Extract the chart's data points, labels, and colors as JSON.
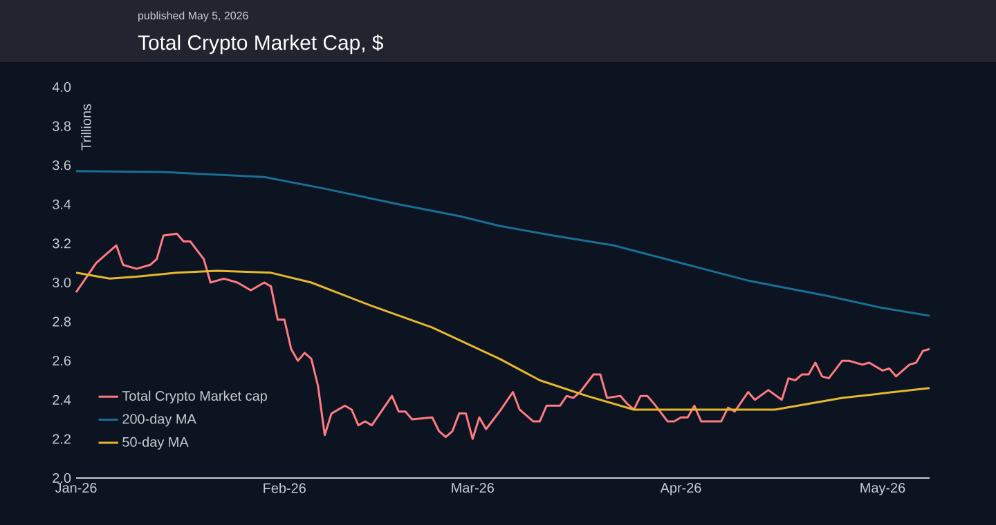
{
  "chart_data": {
    "type": "line",
    "title": "Total Crypto Market Cap, $",
    "subtitle": "published May 5, 2026",
    "ylabel": "Trillions",
    "xlim": [
      "2026-01-01",
      "2026-05-08"
    ],
    "xticks": [
      {
        "value": "2026-01-01",
        "label": "Jan-26"
      },
      {
        "value": "2026-02-01",
        "label": "Feb-26"
      },
      {
        "value": "2026-03-01",
        "label": "Mar-26"
      },
      {
        "value": "2026-04-01",
        "label": "Apr-26"
      },
      {
        "value": "2026-05-01",
        "label": "May-26"
      }
    ],
    "ylim": [
      2.0,
      4.0
    ],
    "yticks": [
      {
        "value": 2,
        "label": "2.0"
      },
      2.2,
      2.4,
      2.6,
      2.8,
      {
        "value": 3,
        "label": "3.0"
      },
      3.2,
      3.4,
      3.6,
      3.8,
      {
        "value": 4,
        "label": "4.0"
      }
    ],
    "legend": "bottom left",
    "series": [
      {
        "name": "Total Crypto Market cap",
        "color": "#ff7b82",
        "x": [
          "2026-01-01",
          "2026-01-04",
          "2026-01-07",
          "2026-01-08",
          "2026-01-10",
          "2026-01-12",
          "2026-01-13",
          "2026-01-14",
          "2026-01-16",
          "2026-01-17",
          "2026-01-18",
          "2026-01-20",
          "2026-01-21",
          "2026-01-23",
          "2026-01-25",
          "2026-01-27",
          "2026-01-29",
          "2026-01-30",
          "2026-01-31",
          "2026-02-01",
          "2026-02-02",
          "2026-02-03",
          "2026-02-04",
          "2026-02-05",
          "2026-02-06",
          "2026-02-07",
          "2026-02-08",
          "2026-02-10",
          "2026-02-11",
          "2026-02-12",
          "2026-02-13",
          "2026-02-14",
          "2026-02-16",
          "2026-02-17",
          "2026-02-18",
          "2026-02-19",
          "2026-02-20",
          "2026-02-23",
          "2026-02-24",
          "2026-02-25",
          "2026-02-26",
          "2026-02-27",
          "2026-02-28",
          "2026-03-01",
          "2026-03-02",
          "2026-03-03",
          "2026-03-05",
          "2026-03-07",
          "2026-03-08",
          "2026-03-10",
          "2026-03-11",
          "2026-03-12",
          "2026-03-14",
          "2026-03-15",
          "2026-03-16",
          "2026-03-17",
          "2026-03-19",
          "2026-03-20",
          "2026-03-21",
          "2026-03-23",
          "2026-03-24",
          "2026-03-25",
          "2026-03-26",
          "2026-03-27",
          "2026-03-28",
          "2026-03-30",
          "2026-03-31",
          "2026-04-01",
          "2026-04-02",
          "2026-04-03",
          "2026-04-04",
          "2026-04-07",
          "2026-04-08",
          "2026-04-09",
          "2026-04-11",
          "2026-04-12",
          "2026-04-14",
          "2026-04-16",
          "2026-04-17",
          "2026-04-18",
          "2026-04-19",
          "2026-04-20",
          "2026-04-21",
          "2026-04-22",
          "2026-04-23",
          "2026-04-25",
          "2026-04-26",
          "2026-04-28",
          "2026-04-29",
          "2026-05-01",
          "2026-05-02",
          "2026-05-03",
          "2026-05-05",
          "2026-05-06",
          "2026-05-07",
          "2026-05-08"
        ],
        "values": [
          2.95,
          3.1,
          3.19,
          3.09,
          3.07,
          3.09,
          3.12,
          3.24,
          3.25,
          3.21,
          3.21,
          3.12,
          3.0,
          3.02,
          3.0,
          2.96,
          3.0,
          2.98,
          2.81,
          2.81,
          2.66,
          2.6,
          2.64,
          2.61,
          2.47,
          2.22,
          2.33,
          2.37,
          2.35,
          2.27,
          2.29,
          2.27,
          2.37,
          2.42,
          2.34,
          2.34,
          2.3,
          2.31,
          2.24,
          2.21,
          2.24,
          2.33,
          2.33,
          2.2,
          2.31,
          2.25,
          2.34,
          2.44,
          2.35,
          2.29,
          2.29,
          2.37,
          2.37,
          2.42,
          2.41,
          2.44,
          2.53,
          2.53,
          2.41,
          2.42,
          2.38,
          2.35,
          2.42,
          2.42,
          2.38,
          2.29,
          2.29,
          2.31,
          2.31,
          2.37,
          2.29,
          2.29,
          2.36,
          2.34,
          2.44,
          2.4,
          2.45,
          2.4,
          2.51,
          2.5,
          2.53,
          2.53,
          2.59,
          2.52,
          2.51,
          2.6,
          2.6,
          2.58,
          2.59,
          2.55,
          2.56,
          2.52,
          2.58,
          2.59,
          2.65,
          2.66
        ]
      },
      {
        "name": "200-day MA",
        "color": "#1a6e96",
        "x": [
          "2026-01-01",
          "2026-01-14",
          "2026-01-29",
          "2026-02-07",
          "2026-02-18",
          "2026-02-27",
          "2026-03-05",
          "2026-03-13",
          "2026-03-22",
          "2026-04-01",
          "2026-04-11",
          "2026-04-23",
          "2026-05-01",
          "2026-05-08"
        ],
        "values": [
          3.57,
          3.565,
          3.54,
          3.48,
          3.4,
          3.34,
          3.29,
          3.24,
          3.19,
          3.1,
          3.01,
          2.93,
          2.87,
          2.83
        ]
      },
      {
        "name": "50-day MA",
        "color": "#e6b82e",
        "x": [
          "2026-01-01",
          "2026-01-06",
          "2026-01-10",
          "2026-01-16",
          "2026-01-22",
          "2026-01-30",
          "2026-02-05",
          "2026-02-14",
          "2026-02-23",
          "2026-03-05",
          "2026-03-11",
          "2026-03-18",
          "2026-03-25",
          "2026-04-01",
          "2026-04-15",
          "2026-04-25",
          "2026-05-08"
        ],
        "values": [
          3.05,
          3.02,
          3.03,
          3.05,
          3.06,
          3.05,
          3.0,
          2.88,
          2.77,
          2.61,
          2.5,
          2.42,
          2.35,
          2.35,
          2.35,
          2.41,
          2.46
        ]
      }
    ]
  }
}
